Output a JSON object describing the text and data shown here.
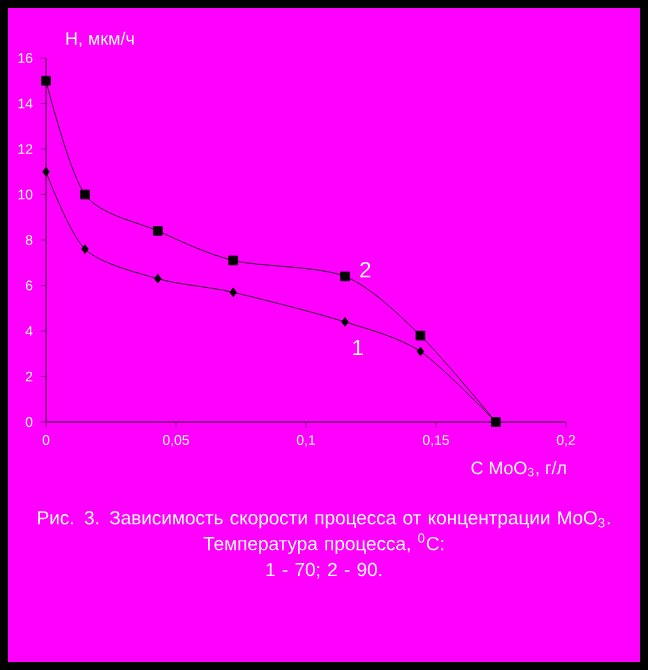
{
  "chart_data": {
    "type": "line",
    "title": "Рис. 3. Зависимость скорости процесса от концентрации MoO$_{3}$.",
    "annotations": [
      "Температура процесса, $^{0}$C:",
      "1 - 70;  2 - 90."
    ],
    "xlabel": "C MoO$_{3}$, г/л",
    "ylabel": "Н, мкм/ч",
    "xlim": [
      0,
      0.2
    ],
    "ylim": [
      0,
      16
    ],
    "xticks": [
      0,
      {
        "value": 0.05,
        "label": "0,05"
      },
      {
        "value": 0.1,
        "label": "0,1"
      },
      {
        "value": 0.15,
        "label": "0,15"
      },
      {
        "value": 0.2,
        "label": "0,2"
      }
    ],
    "yticks": [
      0,
      2,
      4,
      6,
      8,
      10,
      12,
      14,
      16
    ],
    "x": [
      0,
      0.015,
      0.043,
      0.072,
      0.115,
      0.144,
      0.173
    ],
    "series": [
      {
        "name": "1",
        "color": "#000000",
        "marker": "diamond",
        "values": [
          11.0,
          7.6,
          6.3,
          5.7,
          4.4,
          3.1,
          0
        ]
      },
      {
        "name": "2",
        "color": "#000000",
        "marker": "square",
        "values": [
          15.0,
          10.0,
          8.4,
          7.1,
          6.4,
          3.8,
          0
        ]
      }
    ]
  }
}
